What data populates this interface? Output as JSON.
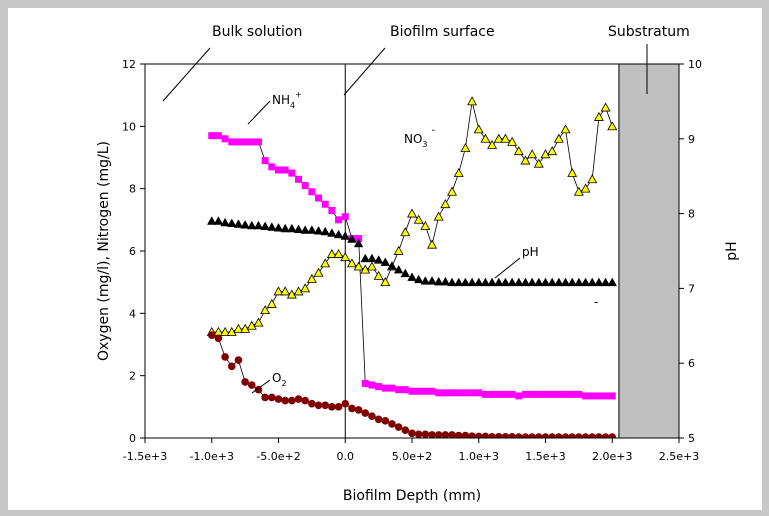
{
  "chart_data": {
    "type": "scatter",
    "xlabel": "Biofilm Depth (mm)",
    "ylabel": "Oxygen (mg/l), Nitrogen (mg/L)",
    "y2label": "pH",
    "xlim": [
      -1500,
      2500
    ],
    "ylim": [
      0,
      12
    ],
    "y2lim": [
      5,
      10
    ],
    "x_ticks": [
      "-1.5e+3",
      "-1.0e+3",
      "-5.0e+2",
      "0.0",
      "5.0e+2",
      "1.0e+3",
      "1.5e+3",
      "2.0e+3",
      "2.5e+3"
    ],
    "y_ticks": [
      "0",
      "2",
      "4",
      "6",
      "8",
      "10",
      "12"
    ],
    "y2_ticks": [
      "5",
      "6",
      "7",
      "8",
      "9",
      "10"
    ],
    "grid": false,
    "legend": "none",
    "annotations": {
      "bulk": "Bulk solution",
      "surface": "Biofilm surface",
      "substratum": "Substratum",
      "nh4_base": "NH",
      "nh4_sub": "4",
      "nh4_sup": "+",
      "no3_base": "NO",
      "no3_sub": "3",
      "no3_sup": "-",
      "ph": "pH",
      "o2_base": "O",
      "o2_sub": "2",
      "dash": "-"
    },
    "surface_x": 0,
    "substratum_range": [
      2050,
      2500
    ],
    "colors": {
      "nh4": "#ff00ff",
      "no3": "#ffff00",
      "ph": "#000000",
      "o2": "#800000",
      "substratum": "#c0c0c0"
    },
    "series": [
      {
        "key": "nh4",
        "axis": "left",
        "marker": "square",
        "connect": true,
        "x": [
          -1000,
          -950,
          -900,
          -850,
          -800,
          -750,
          -700,
          -650,
          -600,
          -550,
          -500,
          -450,
          -400,
          -350,
          -300,
          -250,
          -200,
          -150,
          -100,
          -50,
          0,
          50,
          100,
          150,
          200,
          250,
          300,
          350,
          400,
          450,
          500,
          550,
          600,
          650,
          700,
          750,
          800,
          850,
          900,
          950,
          1000,
          1050,
          1100,
          1150,
          1200,
          1250,
          1300,
          1350,
          1400,
          1450,
          1500,
          1550,
          1600,
          1650,
          1700,
          1750,
          1800,
          1850,
          1900,
          1950,
          2000
        ],
        "y": [
          9.7,
          9.7,
          9.6,
          9.5,
          9.5,
          9.5,
          9.5,
          9.5,
          8.9,
          8.7,
          8.6,
          8.6,
          8.5,
          8.3,
          8.1,
          7.9,
          7.7,
          7.5,
          7.3,
          7.0,
          7.1,
          6.4,
          6.4,
          1.75,
          1.7,
          1.65,
          1.6,
          1.6,
          1.55,
          1.55,
          1.5,
          1.5,
          1.5,
          1.5,
          1.45,
          1.45,
          1.45,
          1.45,
          1.45,
          1.45,
          1.45,
          1.4,
          1.4,
          1.4,
          1.4,
          1.4,
          1.35,
          1.4,
          1.4,
          1.4,
          1.4,
          1.4,
          1.4,
          1.4,
          1.4,
          1.4,
          1.35,
          1.35,
          1.35,
          1.35,
          1.35
        ]
      },
      {
        "key": "no3",
        "axis": "left",
        "marker": "triangle",
        "connect": true,
        "x": [
          -1000,
          -950,
          -900,
          -850,
          -800,
          -750,
          -700,
          -650,
          -600,
          -550,
          -500,
          -450,
          -400,
          -350,
          -300,
          -250,
          -200,
          -150,
          -100,
          -50,
          0,
          50,
          100,
          150,
          200,
          250,
          300,
          350,
          400,
          450,
          500,
          550,
          600,
          650,
          700,
          750,
          800,
          850,
          900,
          950,
          1000,
          1050,
          1100,
          1150,
          1200,
          1250,
          1300,
          1350,
          1400,
          1450,
          1500,
          1550,
          1600,
          1650,
          1700,
          1750,
          1800,
          1850,
          1900,
          1950,
          2000
        ],
        "y": [
          3.4,
          3.4,
          3.4,
          3.4,
          3.5,
          3.5,
          3.6,
          3.7,
          4.1,
          4.3,
          4.7,
          4.7,
          4.6,
          4.7,
          4.8,
          5.1,
          5.3,
          5.6,
          5.9,
          5.9,
          5.8,
          5.6,
          5.5,
          5.4,
          5.5,
          5.2,
          5.0,
          5.5,
          6.0,
          6.6,
          7.2,
          7.0,
          6.8,
          6.2,
          7.1,
          7.5,
          7.9,
          8.5,
          9.3,
          10.8,
          9.9,
          9.6,
          9.4,
          9.6,
          9.6,
          9.5,
          9.2,
          8.9,
          9.1,
          8.8,
          9.1,
          9.2,
          9.6,
          9.9,
          8.5,
          7.9,
          8.0,
          8.3,
          10.3,
          10.6,
          10.0
        ]
      },
      {
        "key": "ph",
        "axis": "right",
        "marker": "triangle",
        "connect": false,
        "x": [
          -1000,
          -950,
          -900,
          -850,
          -800,
          -750,
          -700,
          -650,
          -600,
          -550,
          -500,
          -450,
          -400,
          -350,
          -300,
          -250,
          -200,
          -150,
          -100,
          -50,
          0,
          50,
          100,
          150,
          200,
          250,
          300,
          350,
          400,
          450,
          500,
          550,
          600,
          650,
          700,
          750,
          800,
          850,
          900,
          950,
          1000,
          1050,
          1100,
          1150,
          1200,
          1250,
          1300,
          1350,
          1400,
          1450,
          1500,
          1550,
          1600,
          1650,
          1700,
          1750,
          1800,
          1850,
          1900,
          1950,
          2000
        ],
        "y": [
          7.9,
          7.9,
          7.88,
          7.87,
          7.86,
          7.85,
          7.84,
          7.84,
          7.83,
          7.82,
          7.81,
          7.8,
          7.8,
          7.79,
          7.78,
          7.78,
          7.77,
          7.76,
          7.74,
          7.72,
          7.7,
          7.66,
          7.6,
          7.4,
          7.4,
          7.38,
          7.35,
          7.3,
          7.25,
          7.2,
          7.15,
          7.12,
          7.1,
          7.1,
          7.09,
          7.09,
          7.08,
          7.08,
          7.08,
          7.08,
          7.08,
          7.08,
          7.08,
          7.08,
          7.08,
          7.08,
          7.08,
          7.08,
          7.08,
          7.08,
          7.08,
          7.08,
          7.08,
          7.08,
          7.08,
          7.08,
          7.08,
          7.08,
          7.08,
          7.08,
          7.08
        ]
      },
      {
        "key": "o2",
        "axis": "left",
        "marker": "circle",
        "connect": true,
        "x": [
          -1000,
          -950,
          -900,
          -850,
          -800,
          -750,
          -700,
          -650,
          -600,
          -550,
          -500,
          -450,
          -400,
          -350,
          -300,
          -250,
          -200,
          -150,
          -100,
          -50,
          0,
          50,
          100,
          150,
          200,
          250,
          300,
          350,
          400,
          450,
          500,
          550,
          600,
          650,
          700,
          750,
          800,
          850,
          900,
          950,
          1000,
          1050,
          1100,
          1150,
          1200,
          1250,
          1300,
          1350,
          1400,
          1450,
          1500,
          1550,
          1600,
          1650,
          1700,
          1750,
          1800,
          1850,
          1900,
          1950,
          2000
        ],
        "y": [
          3.3,
          3.2,
          2.6,
          2.3,
          2.5,
          1.8,
          1.7,
          1.55,
          1.3,
          1.3,
          1.25,
          1.2,
          1.2,
          1.25,
          1.2,
          1.1,
          1.05,
          1.05,
          1.0,
          1.0,
          1.1,
          0.95,
          0.9,
          0.8,
          0.7,
          0.6,
          0.55,
          0.45,
          0.35,
          0.25,
          0.15,
          0.12,
          0.12,
          0.1,
          0.1,
          0.1,
          0.1,
          0.08,
          0.08,
          0.06,
          0.05,
          0.05,
          0.04,
          0.04,
          0.04,
          0.04,
          0.03,
          0.03,
          0.03,
          0.03,
          0.03,
          0.03,
          0.03,
          0.03,
          0.03,
          0.03,
          0.03,
          0.03,
          0.03,
          0.03,
          0.03
        ]
      }
    ]
  }
}
